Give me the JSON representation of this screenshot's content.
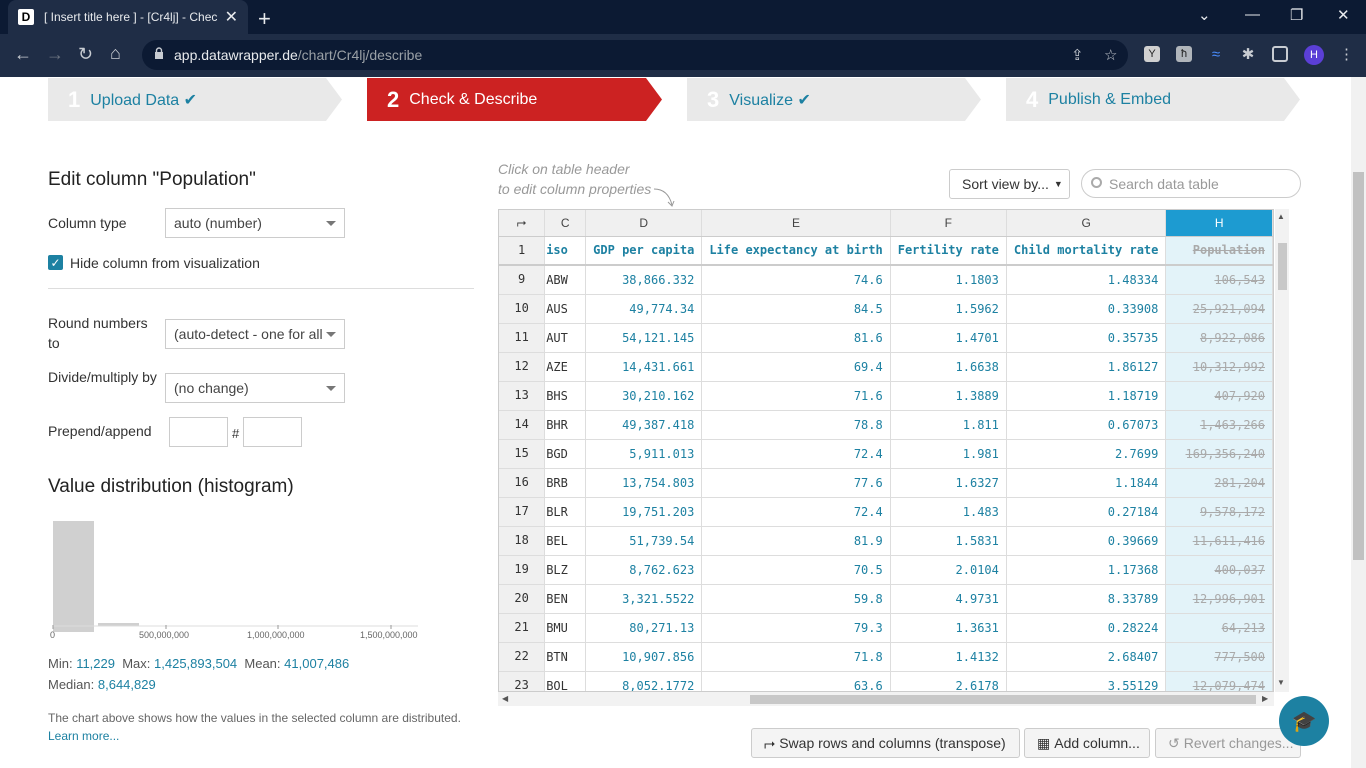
{
  "browser": {
    "tab_title": "[ Insert title here ] - [Cr4lj] - Chec",
    "favicon": "D",
    "url_domain": "app.datawrapper.de",
    "url_path": "/chart/Cr4lj/describe"
  },
  "steps": [
    {
      "num": "1",
      "label": "Upload Data ✔"
    },
    {
      "num": "2",
      "label": "Check & Describe"
    },
    {
      "num": "3",
      "label": "Visualize ✔"
    },
    {
      "num": "4",
      "label": "Publish & Embed"
    }
  ],
  "edit": {
    "title": "Edit column \"Population\"",
    "column_type_label": "Column type",
    "column_type_value": "auto (number)",
    "hide_label": "Hide column from visualization",
    "round_label": "Round numbers to",
    "round_value": "(auto-detect - one for all",
    "divide_label": "Divide/multiply by",
    "divide_value": "(no change)",
    "prepend_label": "Prepend/append",
    "hash": "#"
  },
  "histogram": {
    "title": "Value distribution (histogram)",
    "ticks": [
      "0",
      "500,000,000",
      "1,000,000,000",
      "1,500,000,000"
    ],
    "min_label": "Min:",
    "min": "11,229",
    "max_label": "Max:",
    "max": "1,425,893,504",
    "mean_label": "Mean:",
    "mean": "41,007,486",
    "median_label": "Median:",
    "median": "8,644,829",
    "note": "The chart above shows how the values in the selected column are distributed.",
    "learn_more": "Learn more..."
  },
  "table": {
    "hint_line1": "Click on table header",
    "hint_line2": "to edit column properties",
    "sort_label": "Sort view by...",
    "search_placeholder": "Search data table",
    "col_letters": [
      "C",
      "D",
      "E",
      "F",
      "G",
      "H"
    ],
    "header_rownum": "1",
    "headers": [
      "iso",
      "GDP per capita",
      "Life expectancy at birth",
      "Fertility rate",
      "Child mortality rate",
      "Population"
    ],
    "rows": [
      {
        "n": "9",
        "iso": "ABW",
        "gdp": "38,866.332",
        "life": "74.6",
        "fert": "1.1803",
        "child": "1.48334",
        "pop": "106,543"
      },
      {
        "n": "10",
        "iso": "AUS",
        "gdp": "49,774.34",
        "life": "84.5",
        "fert": "1.5962",
        "child": "0.33908",
        "pop": "25,921,094"
      },
      {
        "n": "11",
        "iso": "AUT",
        "gdp": "54,121.145",
        "life": "81.6",
        "fert": "1.4701",
        "child": "0.35735",
        "pop": "8,922,086"
      },
      {
        "n": "12",
        "iso": "AZE",
        "gdp": "14,431.661",
        "life": "69.4",
        "fert": "1.6638",
        "child": "1.86127",
        "pop": "10,312,992"
      },
      {
        "n": "13",
        "iso": "BHS",
        "gdp": "30,210.162",
        "life": "71.6",
        "fert": "1.3889",
        "child": "1.18719",
        "pop": "407,920"
      },
      {
        "n": "14",
        "iso": "BHR",
        "gdp": "49,387.418",
        "life": "78.8",
        "fert": "1.811",
        "child": "0.67073",
        "pop": "1,463,266"
      },
      {
        "n": "15",
        "iso": "BGD",
        "gdp": "5,911.013",
        "life": "72.4",
        "fert": "1.981",
        "child": "2.7699",
        "pop": "169,356,240"
      },
      {
        "n": "16",
        "iso": "BRB",
        "gdp": "13,754.803",
        "life": "77.6",
        "fert": "1.6327",
        "child": "1.1844",
        "pop": "281,204"
      },
      {
        "n": "17",
        "iso": "BLR",
        "gdp": "19,751.203",
        "life": "72.4",
        "fert": "1.483",
        "child": "0.27184",
        "pop": "9,578,172"
      },
      {
        "n": "18",
        "iso": "BEL",
        "gdp": "51,739.54",
        "life": "81.9",
        "fert": "1.5831",
        "child": "0.39669",
        "pop": "11,611,416"
      },
      {
        "n": "19",
        "iso": "BLZ",
        "gdp": "8,762.623",
        "life": "70.5",
        "fert": "2.0104",
        "child": "1.17368",
        "pop": "400,037"
      },
      {
        "n": "20",
        "iso": "BEN",
        "gdp": "3,321.5522",
        "life": "59.8",
        "fert": "4.9731",
        "child": "8.33789",
        "pop": "12,996,901"
      },
      {
        "n": "21",
        "iso": "BMU",
        "gdp": "80,271.13",
        "life": "79.3",
        "fert": "1.3631",
        "child": "0.28224",
        "pop": "64,213"
      },
      {
        "n": "22",
        "iso": "BTN",
        "gdp": "10,907.856",
        "life": "71.8",
        "fert": "1.4132",
        "child": "2.68407",
        "pop": "777,500"
      },
      {
        "n": "23",
        "iso": "BOL",
        "gdp": "8,052.1772",
        "life": "63.6",
        "fert": "2.6178",
        "child": "3.55129",
        "pop": "12,079,474"
      }
    ]
  },
  "actions": {
    "transpose": "Swap rows and columns (transpose)",
    "add_column": "Add column...",
    "revert": "Revert changes..."
  }
}
